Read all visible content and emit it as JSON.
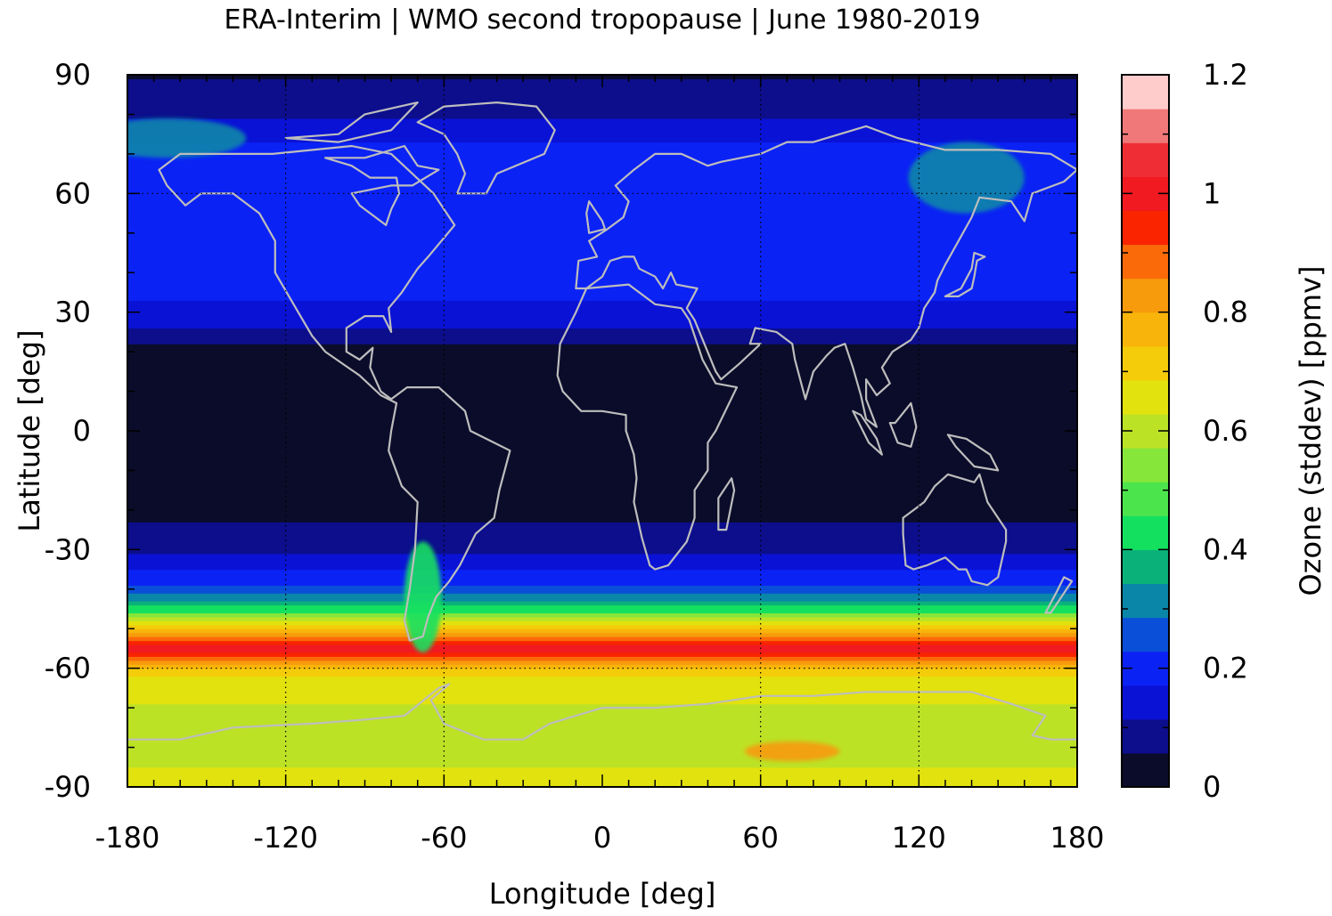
{
  "chart_data": {
    "type": "heatmap",
    "title": "ERA-Interim | WMO second tropopause | June 1980-2019",
    "xlabel": "Longitude [deg]",
    "ylabel": "Latitude [deg]",
    "xlim": [
      -180,
      180
    ],
    "ylim": [
      -90,
      90
    ],
    "x_ticks": [
      -180,
      -120,
      -60,
      0,
      60,
      120,
      180
    ],
    "y_ticks": [
      -90,
      -60,
      -30,
      0,
      30,
      60,
      90
    ],
    "x_tick_labels": [
      "-180",
      "-120",
      "-60",
      "0",
      "60",
      "120",
      "180"
    ],
    "y_tick_labels": [
      "-90",
      "-60",
      "-30",
      "0",
      "30",
      "60",
      "90"
    ],
    "gridlines_dotted": {
      "x": [
        -120,
        -60,
        60,
        120
      ],
      "y": [
        -60,
        60
      ]
    },
    "colorbar": {
      "label": "Ozone (stddev) [ppmv]",
      "range": [
        0,
        1.2
      ],
      "tick_values": [
        0,
        0.2,
        0.4,
        0.6,
        0.8,
        1.0,
        1.2
      ],
      "tick_labels": [
        "0",
        "0.2",
        "0.4",
        "0.6",
        "0.8",
        "1",
        "1.2"
      ],
      "colors": [
        "#0b0c2a",
        "#0c0e8c",
        "#0a12d6",
        "#0b22f5",
        "#0a4fd8",
        "#0a86a8",
        "#0ab27a",
        "#14e060",
        "#4ce44c",
        "#86e63a",
        "#bce226",
        "#e2e20e",
        "#f4cc0a",
        "#f8b40a",
        "#f79a0c",
        "#fa6a08",
        "#fa2400",
        "#f01a20",
        "#ee2e34",
        "#f07878",
        "#ffcccc"
      ]
    },
    "zonal_profile": {
      "latitude": [
        -90,
        -85,
        -80,
        -75,
        -70,
        -65,
        -60,
        -57,
        -55,
        -52,
        -50,
        -47,
        -45,
        -42,
        -40,
        -37,
        -35,
        -32,
        -30,
        -25,
        -22,
        -20,
        -15,
        -10,
        -5,
        0,
        5,
        10,
        15,
        20,
        22,
        25,
        30,
        35,
        40,
        45,
        50,
        55,
        60,
        65,
        70,
        75,
        80,
        85,
        90
      ],
      "ozone_stddev": [
        0.63,
        0.63,
        0.61,
        0.6,
        0.62,
        0.65,
        0.72,
        0.92,
        1.0,
        0.86,
        0.72,
        0.55,
        0.42,
        0.32,
        0.25,
        0.2,
        0.18,
        0.12,
        0.1,
        0.08,
        0.04,
        0.03,
        0.03,
        0.02,
        0.02,
        0.03,
        0.03,
        0.02,
        0.02,
        0.02,
        0.05,
        0.1,
        0.16,
        0.18,
        0.18,
        0.18,
        0.18,
        0.18,
        0.2,
        0.22,
        0.2,
        0.15,
        0.1,
        0.08,
        0.05
      ]
    },
    "regional_maxima": [
      {
        "lon": 72,
        "lat": -81,
        "ozone_stddev": 0.8
      },
      {
        "lon": -68,
        "lat": -42,
        "ozone_stddev": 0.45
      },
      {
        "lon": 138,
        "lat": 64,
        "ozone_stddev": 0.32
      },
      {
        "lon": -165,
        "lat": 74,
        "ozone_stddev": 0.3
      }
    ],
    "overlay": "coastlines"
  }
}
